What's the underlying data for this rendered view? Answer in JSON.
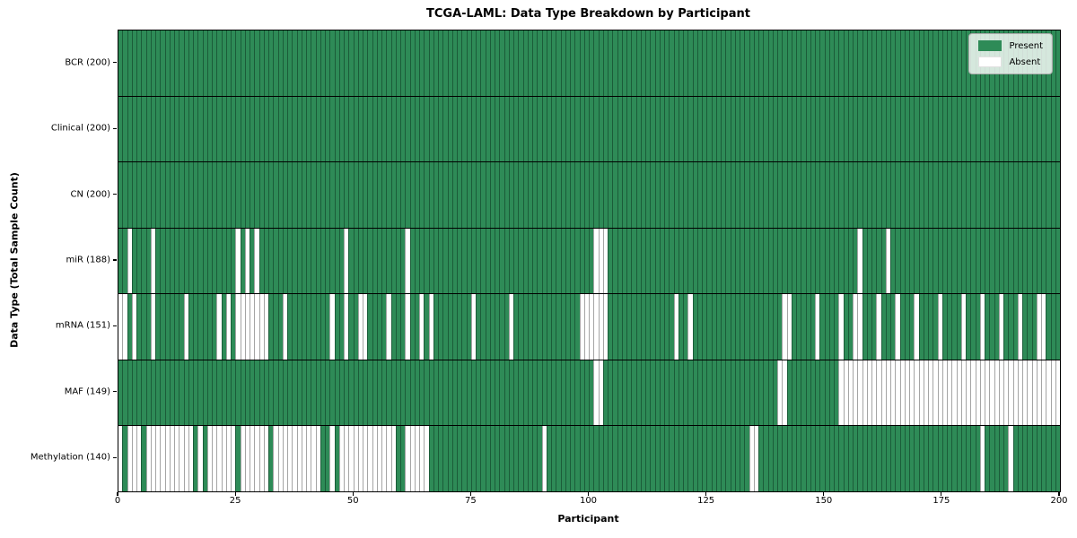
{
  "title": "TCGA-LAML: Data Type Breakdown by Participant",
  "xlabel": "Participant",
  "ylabel": "Data Type (Total Sample Count)",
  "legend": {
    "present_label": "Present",
    "absent_label": "Absent"
  },
  "colors": {
    "present": "#2e8b57",
    "absent": "#ffffff",
    "row_divider": "#000000",
    "present_cell_edge": "#1e5c3a",
    "absent_cell_edge": "#9a9a9a"
  },
  "chart_data": {
    "type": "heatmap",
    "title": "TCGA-LAML: Data Type Breakdown by Participant",
    "xlabel": "Participant",
    "ylabel": "Data Type (Total Sample Count)",
    "x_range": [
      0,
      200
    ],
    "n_participants": 200,
    "x_ticks": [
      0,
      25,
      50,
      75,
      100,
      125,
      150,
      175,
      200
    ],
    "x_tick_labels": [
      "0",
      "25",
      "50",
      "75",
      "100",
      "125",
      "150",
      "175",
      "200"
    ],
    "legend_entries": [
      "Present",
      "Absent"
    ],
    "legend_position": "upper right",
    "value_encoding": {
      "present": "green cell",
      "absent": "white cell"
    },
    "rows": [
      {
        "name": "BCR",
        "label": "BCR (200)",
        "present_count": 200,
        "absent": []
      },
      {
        "name": "Clinical",
        "label": "Clinical (200)",
        "present_count": 200,
        "absent": []
      },
      {
        "name": "CN",
        "label": "CN (200)",
        "present_count": 200,
        "absent": []
      },
      {
        "name": "miR",
        "label": "miR (188)",
        "present_count": 188,
        "absent": [
          2,
          7,
          25,
          27,
          29,
          48,
          61,
          101,
          102,
          103,
          157,
          163
        ]
      },
      {
        "name": "mRNA",
        "label": "mRNA (151)",
        "present_count": 151,
        "absent": [
          0,
          1,
          3,
          7,
          14,
          21,
          23,
          25,
          26,
          27,
          28,
          29,
          30,
          31,
          35,
          45,
          48,
          51,
          52,
          57,
          61,
          64,
          66,
          75,
          83,
          98,
          99,
          100,
          101,
          102,
          103,
          118,
          121,
          141,
          142,
          148,
          153,
          156,
          157,
          161,
          165,
          169,
          174,
          179,
          183,
          187,
          191,
          195,
          196
        ]
      },
      {
        "name": "MAF",
        "label": "MAF (149)",
        "present_count": 149,
        "absent": [
          101,
          102,
          140,
          141,
          153,
          154,
          155,
          156,
          157,
          158,
          159,
          160,
          161,
          162,
          163,
          164,
          165,
          166,
          167,
          168,
          169,
          170,
          171,
          172,
          173,
          174,
          175,
          176,
          177,
          178,
          179,
          180,
          181,
          182,
          183,
          184,
          185,
          186,
          187,
          188,
          189,
          190,
          191,
          192,
          193,
          194,
          195,
          196,
          197,
          198,
          199
        ]
      },
      {
        "name": "Methylation",
        "label": "Methylation (140)",
        "present_count": 140,
        "absent": [
          0,
          2,
          3,
          4,
          6,
          7,
          8,
          9,
          10,
          11,
          12,
          13,
          14,
          15,
          17,
          19,
          20,
          21,
          22,
          23,
          24,
          26,
          27,
          28,
          29,
          30,
          31,
          33,
          34,
          35,
          36,
          37,
          38,
          39,
          40,
          41,
          42,
          45,
          47,
          48,
          49,
          50,
          51,
          52,
          53,
          54,
          55,
          56,
          57,
          58,
          61,
          62,
          63,
          64,
          65,
          90,
          134,
          135,
          183,
          189
        ]
      }
    ]
  }
}
